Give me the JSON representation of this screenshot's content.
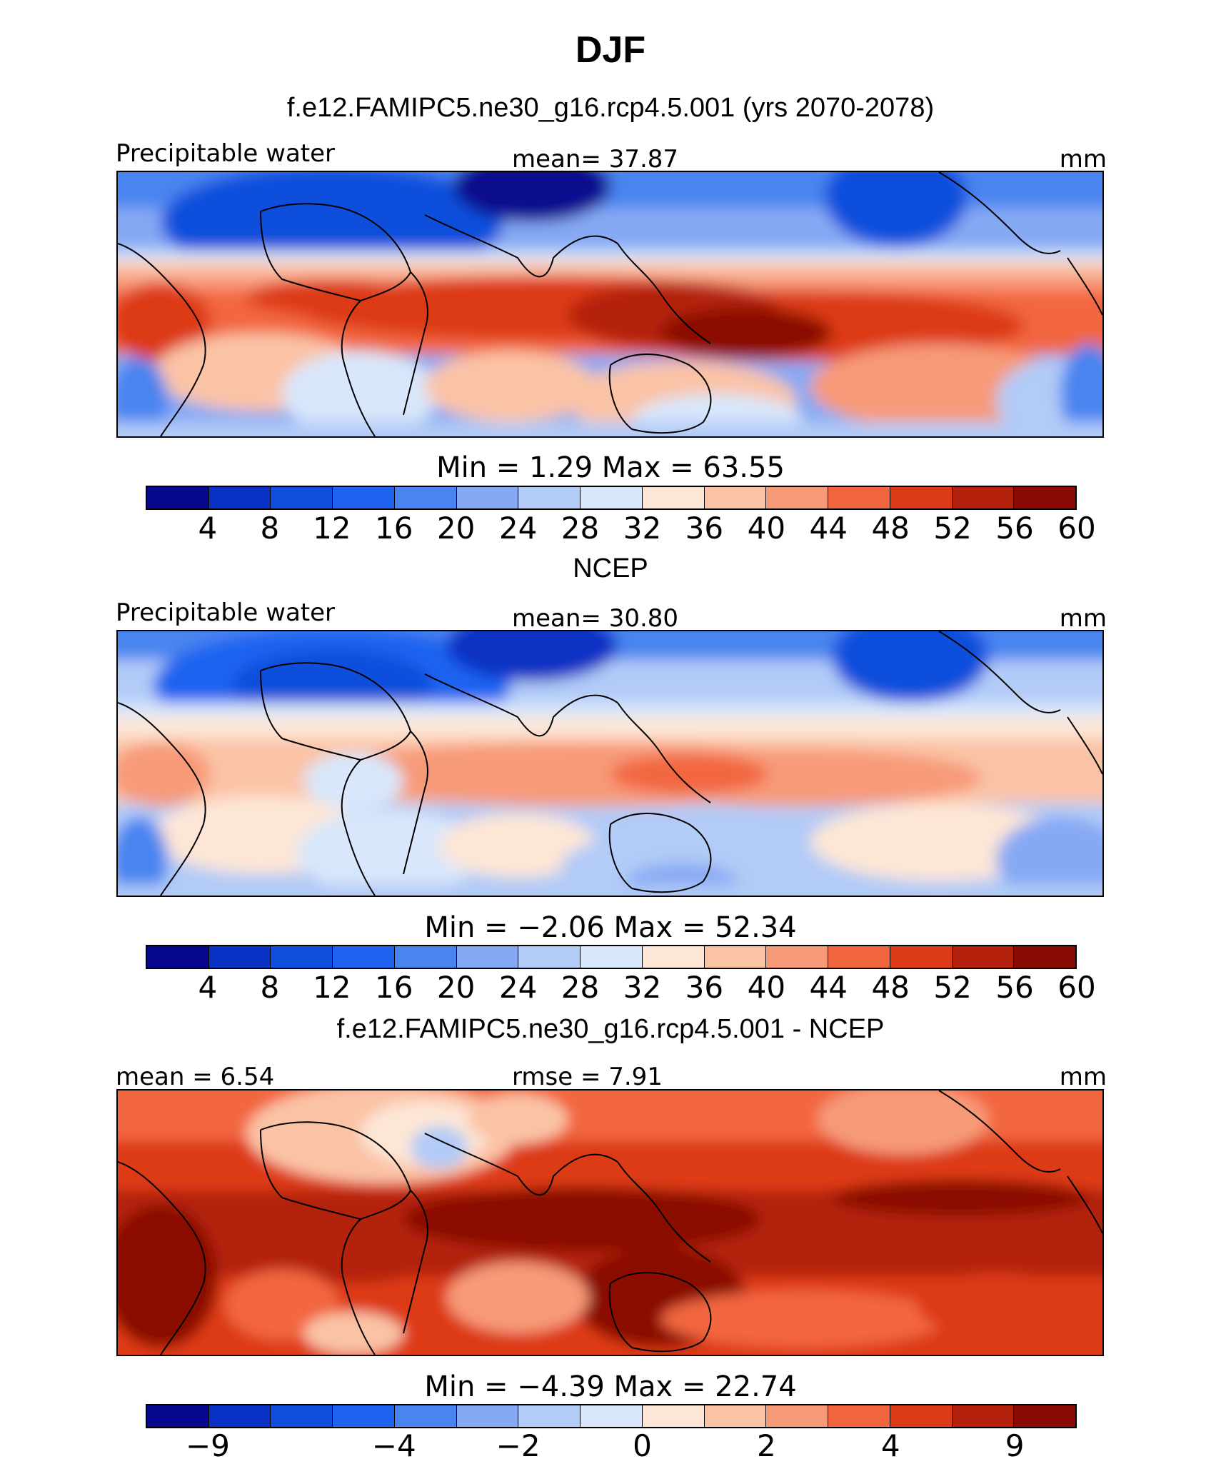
{
  "figure": {
    "title": "DJF"
  },
  "panels": [
    {
      "title": "f.e12.FAMIPC5.ne30_g16.rcp4.5.001 (yrs 2070-2078)",
      "left_label": "Precipitable water",
      "center_label": "mean=   37.87",
      "right_label": "mm",
      "stats": "Min  =     1.29  Max  =    63.55",
      "colorbar_ticks": [
        "4",
        "8",
        "12",
        "16",
        "20",
        "24",
        "28",
        "32",
        "36",
        "40",
        "44",
        "48",
        "52",
        "56",
        "60"
      ],
      "colorbar_colors": [
        "#08088f",
        "#0a32c4",
        "#0f4fdc",
        "#1f63f0",
        "#4a84f0",
        "#86a9f4",
        "#b2cbf7",
        "#d8e7fb",
        "#fde6d6",
        "#fbc3a6",
        "#f79a78",
        "#f2663f",
        "#dd3a17",
        "#b3200b",
        "#8a0a05"
      ]
    },
    {
      "title": "NCEP",
      "left_label": "Precipitable water",
      "center_label": "mean=   30.80",
      "right_label": "mm",
      "stats": "Min  =   −2.06  Max  =    52.34",
      "colorbar_ticks": [
        "4",
        "8",
        "12",
        "16",
        "20",
        "24",
        "28",
        "32",
        "36",
        "40",
        "44",
        "48",
        "52",
        "56",
        "60"
      ],
      "colorbar_colors": [
        "#08088f",
        "#0a32c4",
        "#0f4fdc",
        "#1f63f0",
        "#4a84f0",
        "#86a9f4",
        "#b2cbf7",
        "#d8e7fb",
        "#fde6d6",
        "#fbc3a6",
        "#f79a78",
        "#f2663f",
        "#dd3a17",
        "#b3200b",
        "#8a0a05"
      ]
    },
    {
      "title": "f.e12.FAMIPC5.ne30_g16.rcp4.5.001 - NCEP",
      "left_label": "mean  =    6.54",
      "center_label": "rmse  =    7.91",
      "right_label": "mm",
      "stats": "Min  =   −4.39  Max  =    22.74",
      "colorbar_ticks": [
        "−9",
        "−4",
        "−2",
        "0",
        "2",
        "4",
        "9"
      ],
      "colorbar_colors": [
        "#08088f",
        "#0a32c4",
        "#0f4fdc",
        "#1f63f0",
        "#4a84f0",
        "#86a9f4",
        "#b2cbf7",
        "#d8e7fb",
        "#fde6d6",
        "#fbc3a6",
        "#f79a78",
        "#f2663f",
        "#dd3a17",
        "#b3200b",
        "#8a0a05"
      ]
    }
  ]
}
